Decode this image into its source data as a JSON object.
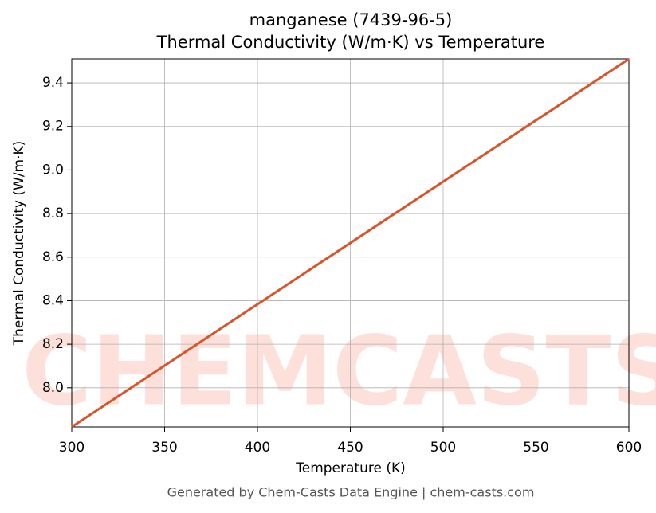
{
  "chart_data": {
    "type": "line",
    "title": "manganese (7439-96-5)",
    "subtitle": "Thermal Conductivity (W/m·K) vs Temperature",
    "x_label": "Temperature (K)",
    "y_label": "Thermal Conductivity (W/m·K)",
    "footer": "Generated by Chem-Casts Data Engine | chem-casts.com",
    "watermark": "CHEMCASTS",
    "x": [
      300,
      600
    ],
    "series": [
      {
        "color": "#d9542a",
        "values": [
          7.82,
          9.51
        ]
      }
    ],
    "xlim": [
      300,
      600
    ],
    "ylim": [
      7.82,
      9.51
    ],
    "xticks": [
      300,
      350,
      400,
      450,
      500,
      550,
      600
    ],
    "yticks": [
      {
        "value": 8,
        "label": "8.0"
      },
      8.2,
      8.4,
      8.6,
      8.8,
      {
        "value": 9,
        "label": "9.0"
      },
      9.2,
      9.4
    ],
    "grid": true
  }
}
